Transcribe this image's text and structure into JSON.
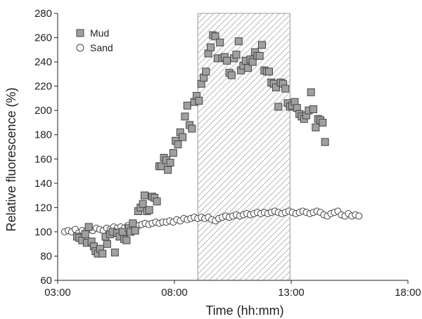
{
  "chart_data": {
    "type": "scatter",
    "xlabel": "Time (hh:mm)",
    "ylabel": "Relative fluorescence (%)",
    "x_unit": "hours",
    "xlim": [
      3,
      18
    ],
    "ylim": [
      60,
      280
    ],
    "x_ticks": [
      {
        "value": 3,
        "label": "03:00"
      },
      {
        "value": 8,
        "label": "08:00"
      },
      {
        "value": 13,
        "label": "13:00"
      },
      {
        "value": 18,
        "label": "18:00"
      }
    ],
    "y_ticks": [
      60,
      80,
      100,
      120,
      140,
      160,
      180,
      200,
      220,
      240,
      260,
      280
    ],
    "grid": false,
    "legend": {
      "position": "top-left"
    },
    "shaded_region": {
      "x_start": 9.0,
      "x_end": 12.95,
      "pattern": "diagonal-hatch"
    },
    "series": [
      {
        "name": "Mud",
        "marker": "square",
        "fill": "#a0a0a0",
        "points": [
          [
            3.83,
            96
          ],
          [
            3.93,
            95
          ],
          [
            4.05,
            93
          ],
          [
            4.18,
            98
          ],
          [
            4.25,
            91
          ],
          [
            4.33,
            104
          ],
          [
            4.45,
            92
          ],
          [
            4.55,
            88
          ],
          [
            4.62,
            84
          ],
          [
            4.72,
            82
          ],
          [
            4.82,
            86
          ],
          [
            4.92,
            82
          ],
          [
            5.05,
            96
          ],
          [
            5.12,
            90
          ],
          [
            5.25,
            98
          ],
          [
            5.35,
            100
          ],
          [
            5.45,
            83
          ],
          [
            5.55,
            99
          ],
          [
            5.65,
            96
          ],
          [
            5.78,
            100
          ],
          [
            5.85,
            94
          ],
          [
            5.95,
            93
          ],
          [
            6.05,
            103
          ],
          [
            6.12,
            100
          ],
          [
            6.22,
            107
          ],
          [
            6.32,
            101
          ],
          [
            6.45,
            117
          ],
          [
            6.55,
            120
          ],
          [
            6.65,
            123
          ],
          [
            6.72,
            130
          ],
          [
            6.82,
            117
          ],
          [
            6.92,
            118
          ],
          [
            7.05,
            129
          ],
          [
            7.15,
            128
          ],
          [
            7.25,
            125
          ],
          [
            7.35,
            154
          ],
          [
            7.45,
            154
          ],
          [
            7.55,
            161
          ],
          [
            7.65,
            159
          ],
          [
            7.72,
            151
          ],
          [
            7.82,
            157
          ],
          [
            7.95,
            165
          ],
          [
            8.05,
            175
          ],
          [
            8.15,
            172
          ],
          [
            8.25,
            182
          ],
          [
            8.35,
            178
          ],
          [
            8.45,
            195
          ],
          [
            8.55,
            204
          ],
          [
            8.65,
            188
          ],
          [
            8.75,
            185
          ],
          [
            8.85,
            207
          ],
          [
            8.95,
            212
          ],
          [
            9.05,
            208
          ],
          [
            9.15,
            222
          ],
          [
            9.25,
            227
          ],
          [
            9.35,
            232
          ],
          [
            9.45,
            247
          ],
          [
            9.55,
            252
          ],
          [
            9.65,
            262
          ],
          [
            9.75,
            261
          ],
          [
            9.85,
            243
          ],
          [
            9.95,
            256
          ],
          [
            10.05,
            243
          ],
          [
            10.15,
            244
          ],
          [
            10.25,
            241
          ],
          [
            10.35,
            231
          ],
          [
            10.45,
            229
          ],
          [
            10.55,
            243
          ],
          [
            10.65,
            246
          ],
          [
            10.75,
            257
          ],
          [
            10.85,
            233
          ],
          [
            10.95,
            237
          ],
          [
            11.05,
            241
          ],
          [
            11.15,
            235
          ],
          [
            11.25,
            242
          ],
          [
            11.35,
            240
          ],
          [
            11.45,
            248
          ],
          [
            11.55,
            245
          ],
          [
            11.65,
            245
          ],
          [
            11.75,
            254
          ],
          [
            11.85,
            233
          ],
          [
            11.95,
            232
          ],
          [
            12.05,
            232
          ],
          [
            12.15,
            223
          ],
          [
            12.25,
            222
          ],
          [
            12.35,
            219
          ],
          [
            12.45,
            203
          ],
          [
            12.55,
            223
          ],
          [
            12.65,
            222
          ],
          [
            12.75,
            218
          ],
          [
            12.85,
            206
          ],
          [
            12.95,
            203
          ],
          [
            13.05,
            204
          ],
          [
            13.15,
            207
          ],
          [
            13.25,
            202
          ],
          [
            13.35,
            197
          ],
          [
            13.45,
            195
          ],
          [
            13.55,
            193
          ],
          [
            13.65,
            196
          ],
          [
            13.75,
            200
          ],
          [
            13.85,
            215
          ],
          [
            13.95,
            201
          ],
          [
            14.05,
            186
          ],
          [
            14.15,
            193
          ],
          [
            14.25,
            192
          ],
          [
            14.35,
            190
          ],
          [
            14.45,
            174
          ]
        ]
      },
      {
        "name": "Sand",
        "marker": "circle",
        "fill": "#ffffff",
        "points": [
          [
            3.3,
            100
          ],
          [
            3.45,
            101
          ],
          [
            3.6,
            100
          ],
          [
            3.75,
            102
          ],
          [
            3.9,
            99
          ],
          [
            4.05,
            101
          ],
          [
            4.2,
            100
          ],
          [
            4.35,
            102
          ],
          [
            4.5,
            101
          ],
          [
            4.65,
            103
          ],
          [
            4.8,
            102
          ],
          [
            4.95,
            101
          ],
          [
            5.1,
            103
          ],
          [
            5.25,
            102
          ],
          [
            5.4,
            104
          ],
          [
            5.55,
            103
          ],
          [
            5.7,
            104
          ],
          [
            5.85,
            103
          ],
          [
            6.0,
            105
          ],
          [
            6.15,
            104
          ],
          [
            6.3,
            106
          ],
          [
            6.45,
            105
          ],
          [
            6.6,
            106
          ],
          [
            6.75,
            107
          ],
          [
            6.9,
            106
          ],
          [
            7.05,
            107
          ],
          [
            7.2,
            108
          ],
          [
            7.35,
            107
          ],
          [
            7.5,
            108
          ],
          [
            7.65,
            108
          ],
          [
            7.8,
            109
          ],
          [
            7.95,
            108
          ],
          [
            8.1,
            110
          ],
          [
            8.25,
            109
          ],
          [
            8.4,
            111
          ],
          [
            8.55,
            110
          ],
          [
            8.7,
            111
          ],
          [
            8.85,
            112
          ],
          [
            9.0,
            111
          ],
          [
            9.15,
            112
          ],
          [
            9.3,
            111
          ],
          [
            9.45,
            112
          ],
          [
            9.6,
            110
          ],
          [
            9.75,
            109
          ],
          [
            9.9,
            111
          ],
          [
            10.05,
            112
          ],
          [
            10.2,
            113
          ],
          [
            10.35,
            112
          ],
          [
            10.5,
            113
          ],
          [
            10.65,
            114
          ],
          [
            10.8,
            113
          ],
          [
            10.95,
            114
          ],
          [
            11.1,
            115
          ],
          [
            11.25,
            114
          ],
          [
            11.4,
            115
          ],
          [
            11.55,
            116
          ],
          [
            11.7,
            115
          ],
          [
            11.85,
            116
          ],
          [
            12.0,
            115
          ],
          [
            12.15,
            116
          ],
          [
            12.3,
            117
          ],
          [
            12.45,
            116
          ],
          [
            12.6,
            115
          ],
          [
            12.75,
            116
          ],
          [
            12.9,
            117
          ],
          [
            13.05,
            116
          ],
          [
            13.2,
            115
          ],
          [
            13.35,
            116
          ],
          [
            13.5,
            117
          ],
          [
            13.65,
            116
          ],
          [
            13.8,
            115
          ],
          [
            13.95,
            116
          ],
          [
            14.1,
            117
          ],
          [
            14.25,
            116
          ],
          [
            14.4,
            114
          ],
          [
            14.55,
            113
          ],
          [
            14.7,
            115
          ],
          [
            14.85,
            116
          ],
          [
            15.0,
            117
          ],
          [
            15.15,
            114
          ],
          [
            15.3,
            113
          ],
          [
            15.45,
            115
          ],
          [
            15.6,
            113
          ],
          [
            15.75,
            114
          ],
          [
            15.9,
            113
          ]
        ]
      }
    ]
  }
}
